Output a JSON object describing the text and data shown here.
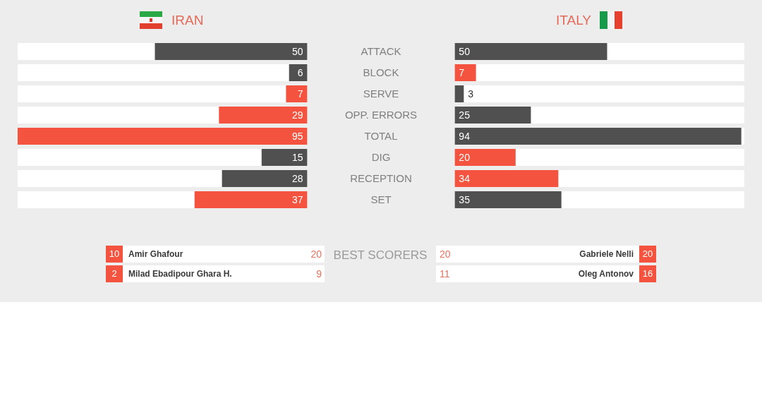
{
  "chart_data": [
    {
      "type": "bar",
      "orientation": "horizontal",
      "title": "IRAN",
      "categories": [
        "ATTACK",
        "BLOCK",
        "SERVE",
        "OPP. ERRORS",
        "TOTAL",
        "DIG",
        "RECEPTION",
        "SET"
      ],
      "values": [
        50,
        6,
        7,
        29,
        95,
        15,
        28,
        37
      ],
      "colors": [
        "#505050",
        "#505050",
        "#f4543f",
        "#f4543f",
        "#f4543f",
        "#505050",
        "#505050",
        "#f4543f"
      ],
      "data_labels": true,
      "tick_labels": false
    },
    {
      "type": "bar",
      "orientation": "horizontal",
      "title": "ITALY",
      "categories": [
        "ATTACK",
        "BLOCK",
        "SERVE",
        "OPP. ERRORS",
        "TOTAL",
        "DIG",
        "RECEPTION",
        "SET"
      ],
      "values": [
        50,
        7,
        3,
        25,
        94,
        20,
        34,
        35
      ],
      "colors": [
        "#505050",
        "#f4543f",
        "#505050",
        "#505050",
        "#505050",
        "#f4543f",
        "#f4543f",
        "#505050"
      ],
      "data_labels": true,
      "tick_labels": "y"
    },
    {
      "type": "other",
      "title": "BEST SCORERS",
      "annotations": [
        "10",
        "Amir Ghafour",
        "20",
        "20",
        "Gabriele Nelli",
        "20",
        "2",
        "Milad Ebadipour Ghara H.",
        "9",
        "11",
        "Oleg Antonov",
        "16"
      ]
    }
  ]
}
